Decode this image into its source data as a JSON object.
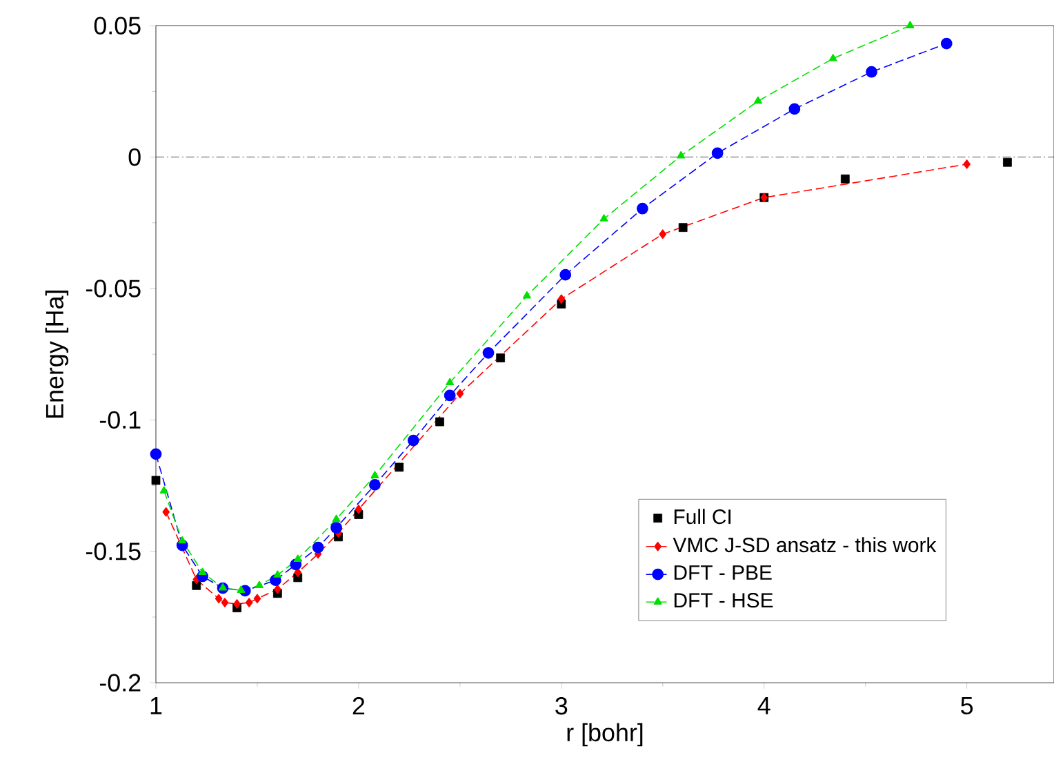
{
  "chart_data": {
    "type": "line",
    "xlabel": "r [bohr]",
    "ylabel": "Energy [Ha]",
    "xlim": [
      1,
      5.43
    ],
    "xticks": [
      1,
      2,
      3,
      4,
      5
    ],
    "ylim": [
      -0.2,
      0.05
    ],
    "yticks": [
      -0.2,
      -0.15,
      -0.1,
      -0.05,
      0,
      0.05
    ],
    "legend": "bottom right",
    "grid": false,
    "ref_lines": [
      {
        "axis": "y",
        "value": 0,
        "color": "#000000",
        "line_style": "dashdot"
      }
    ],
    "series": [
      {
        "name": "Full CI",
        "type": "scatter",
        "color": "#000000",
        "marker": "square",
        "x": [
          1.0,
          1.2,
          1.4,
          1.6,
          1.7,
          1.9,
          2.0,
          2.2,
          2.4,
          2.7,
          3.0,
          3.6,
          4.0,
          4.4,
          5.2
        ],
        "values": [
          -0.123,
          -0.163,
          -0.1715,
          -0.166,
          -0.16,
          -0.1445,
          -0.136,
          -0.118,
          -0.1007,
          -0.0764,
          -0.0559,
          -0.0268,
          -0.0154,
          -0.0083,
          -0.002
        ]
      },
      {
        "name": "VMC J-SD ansatz - this work",
        "type": "line",
        "color": "#ff0000",
        "marker": "diamond",
        "line_style": "dashed",
        "x": [
          1.05,
          1.2,
          1.31,
          1.34,
          1.4,
          1.46,
          1.5,
          1.6,
          1.7,
          1.8,
          1.9,
          2.0,
          2.5,
          3.0,
          3.5,
          4.0,
          5.0
        ],
        "values": [
          -0.135,
          -0.1607,
          -0.168,
          -0.1695,
          -0.17,
          -0.1695,
          -0.168,
          -0.1644,
          -0.158,
          -0.151,
          -0.143,
          -0.134,
          -0.09,
          -0.054,
          -0.0293,
          -0.0154,
          -0.0027
        ]
      },
      {
        "name": "DFT - PBE",
        "type": "line",
        "color": "#0000ff",
        "marker": "circle",
        "line_style": "dashed",
        "x": [
          1.0,
          1.13,
          1.23,
          1.33,
          1.44,
          1.59,
          1.69,
          1.8,
          1.89,
          2.08,
          2.27,
          2.45,
          2.64,
          3.02,
          3.4,
          3.77,
          4.15,
          4.53,
          4.9
        ],
        "values": [
          -0.113,
          -0.1477,
          -0.1595,
          -0.164,
          -0.165,
          -0.161,
          -0.155,
          -0.1485,
          -0.141,
          -0.1247,
          -0.1078,
          -0.0907,
          -0.0745,
          -0.0448,
          -0.0196,
          0.0015,
          0.0183,
          0.0324,
          0.0432
        ]
      },
      {
        "name": "DFT - HSE",
        "type": "line",
        "color": "#00e000",
        "marker": "triangle",
        "line_style": "dashed",
        "x": [
          1.04,
          1.13,
          1.23,
          1.33,
          1.42,
          1.51,
          1.6,
          1.7,
          1.89,
          2.08,
          2.45,
          2.83,
          3.21,
          3.59,
          3.97,
          4.34,
          4.72
        ],
        "values": [
          -0.127,
          -0.146,
          -0.158,
          -0.1639,
          -0.1648,
          -0.163,
          -0.159,
          -0.153,
          -0.1378,
          -0.1212,
          -0.0858,
          -0.0528,
          -0.0235,
          0.0005,
          0.0213,
          0.0375,
          0.05
        ]
      }
    ]
  }
}
